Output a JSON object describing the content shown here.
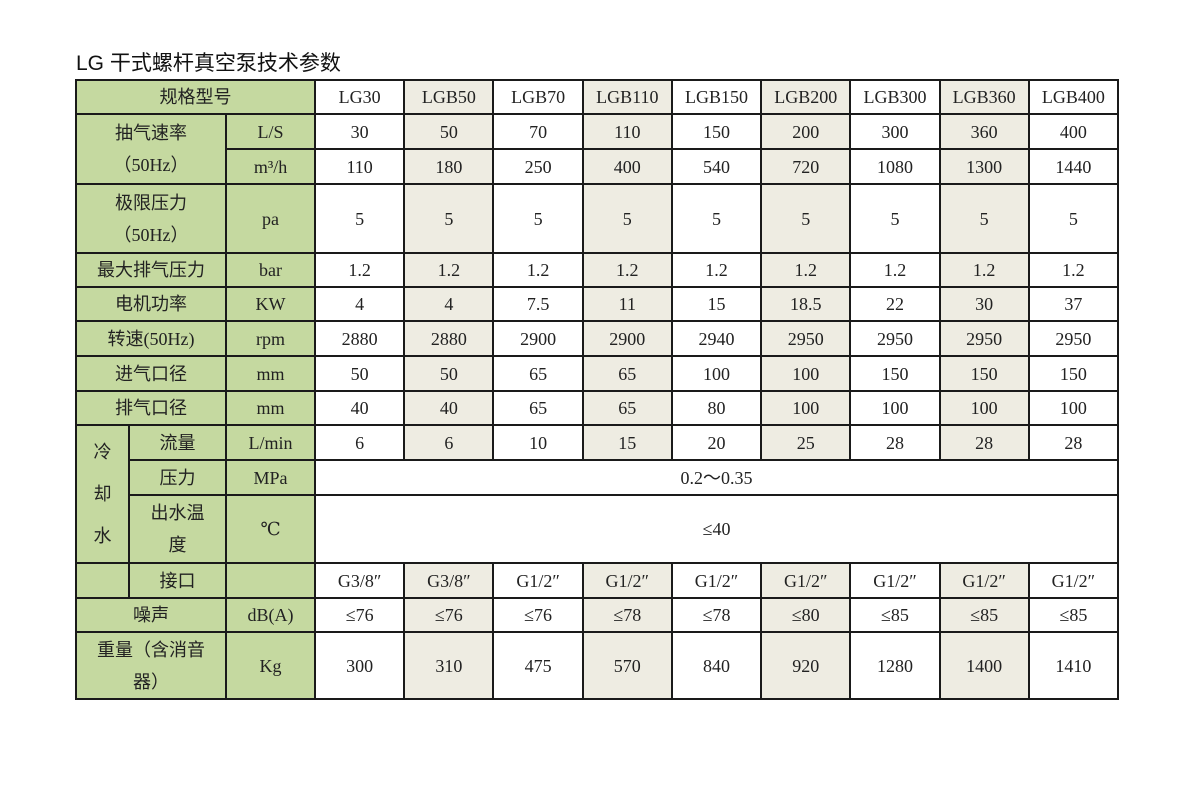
{
  "title": "LG 干式螺杆真空泵技术参数",
  "colors": {
    "label_bg": "#c5d9a0",
    "alt_column_bg": "#eeece2",
    "border": "#1a1a1a"
  },
  "header_label": "规格型号",
  "models": [
    "LG30",
    "LGB50",
    "LGB70",
    "LGB110",
    "LGB150",
    "LGB200",
    "LGB300",
    "LGB360",
    "LGB400"
  ],
  "pumping_speed": {
    "label": [
      "抽气速率",
      "（50Hz）"
    ],
    "rows": [
      {
        "unit": "L/S",
        "values": [
          "30",
          "50",
          "70",
          "110",
          "150",
          "200",
          "300",
          "360",
          "400"
        ]
      },
      {
        "unit": "m³/h",
        "values": [
          "110",
          "180",
          "250",
          "400",
          "540",
          "720",
          "1080",
          "1300",
          "1440"
        ]
      }
    ]
  },
  "ultimate_pressure": {
    "label": [
      "极限压力",
      "（50Hz）"
    ],
    "unit": "pa",
    "values": [
      "5",
      "5",
      "5",
      "5",
      "5",
      "5",
      "5",
      "5",
      "5"
    ]
  },
  "simple_rows": [
    {
      "label": "最大排气压力",
      "unit": "bar",
      "values": [
        "1.2",
        "1.2",
        "1.2",
        "1.2",
        "1.2",
        "1.2",
        "1.2",
        "1.2",
        "1.2"
      ]
    },
    {
      "label": "电机功率",
      "unit": "KW",
      "values": [
        "4",
        "4",
        "7.5",
        "11",
        "15",
        "18.5",
        "22",
        "30",
        "37"
      ]
    },
    {
      "label": "转速(50Hz)",
      "unit": "rpm",
      "values": [
        "2880",
        "2880",
        "2900",
        "2900",
        "2940",
        "2950",
        "2950",
        "2950",
        "2950"
      ]
    },
    {
      "label": "进气口径",
      "unit": "mm",
      "values": [
        "50",
        "50",
        "65",
        "65",
        "100",
        "100",
        "150",
        "150",
        "150"
      ]
    },
    {
      "label": "排气口径",
      "unit": "mm",
      "values": [
        "40",
        "40",
        "65",
        "65",
        "80",
        "100",
        "100",
        "100",
        "100"
      ]
    }
  ],
  "cooling_water": {
    "group_label": [
      "冷",
      "却",
      "水"
    ],
    "flow": {
      "label": "流量",
      "unit": "L/min",
      "values": [
        "6",
        "6",
        "10",
        "15",
        "20",
        "25",
        "28",
        "28",
        "28"
      ]
    },
    "pressure": {
      "label": "压力",
      "unit": "MPa",
      "value": "0.2～0.35"
    },
    "outlet_temp": {
      "label": [
        "出水温",
        "度"
      ],
      "unit": "℃",
      "value": "≤40"
    },
    "connection": {
      "label": "接口",
      "unit": "",
      "values": [
        "G3/8″",
        "G3/8″",
        "G1/2″",
        "G1/2″",
        "G1/2″",
        "G1/2″",
        "G1/2″",
        "G1/2″",
        "G1/2″"
      ]
    }
  },
  "noise": {
    "label": "噪声",
    "unit": "dB(A)",
    "values": [
      "≤76",
      "≤76",
      "≤76",
      "≤78",
      "≤78",
      "≤80",
      "≤85",
      "≤85",
      "≤85"
    ]
  },
  "weight": {
    "label": [
      "重量（含消音",
      "器）"
    ],
    "unit": "Kg",
    "values": [
      "300",
      "310",
      "475",
      "570",
      "840",
      "920",
      "1280",
      "1400",
      "1410"
    ]
  }
}
